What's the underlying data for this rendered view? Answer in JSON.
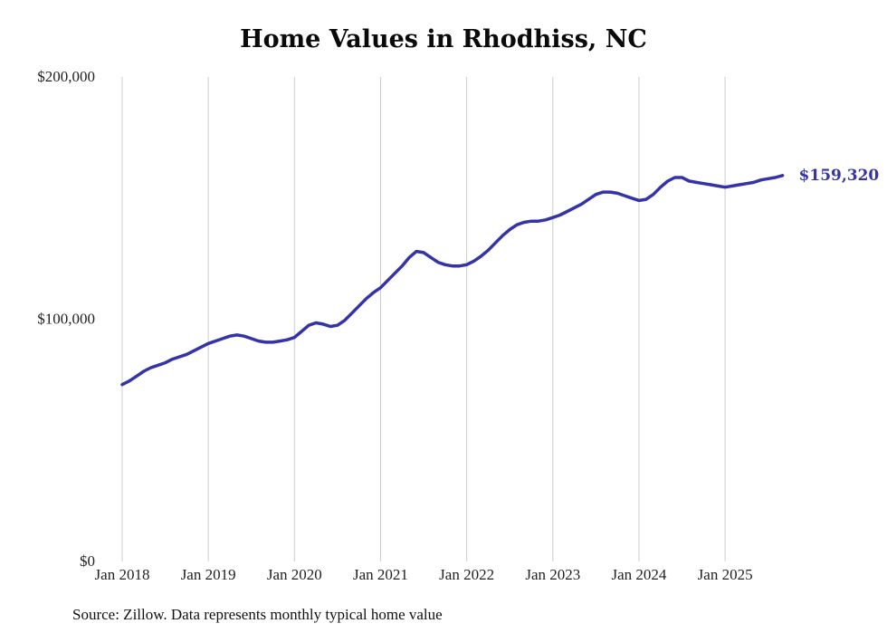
{
  "chart_data": {
    "type": "line",
    "title": "Home Values in Rhodhiss, NC",
    "source_note": "Source: Zillow. Data represents monthly typical home value",
    "end_label": "$159,320",
    "line_color": "#3533a8",
    "grid_color": "#cccccc",
    "frequency": "monthly",
    "start_month": "2018-01",
    "end_month": "2025-09",
    "ylim": [
      0,
      200000
    ],
    "y_ticks": [
      {
        "value": 0,
        "label": "$0"
      },
      {
        "value": 100000,
        "label": "$100,000"
      },
      {
        "value": 200000,
        "label": "$200,000"
      }
    ],
    "x_ticks": [
      "Jan 2018",
      "Jan 2019",
      "Jan 2020",
      "Jan 2021",
      "Jan 2022",
      "Jan 2023",
      "Jan 2024",
      "Jan 2025"
    ],
    "legend_position": "none",
    "grid": "vertical-only",
    "series": [
      {
        "name": "Typical home value",
        "values": [
          73000,
          74500,
          76500,
          78500,
          80000,
          81000,
          82000,
          83500,
          84500,
          85500,
          87000,
          88500,
          90000,
          91000,
          92000,
          93000,
          93500,
          93000,
          92000,
          91000,
          90500,
          90500,
          91000,
          91500,
          92500,
          95000,
          97500,
          98500,
          98000,
          97000,
          97500,
          99500,
          102500,
          105500,
          108500,
          111000,
          113000,
          116000,
          119000,
          122000,
          125500,
          128000,
          127500,
          125500,
          123500,
          122500,
          122000,
          122000,
          122500,
          124000,
          126000,
          128500,
          131500,
          134500,
          137000,
          139000,
          140000,
          140500,
          140500,
          141000,
          142000,
          143000,
          144500,
          146000,
          147500,
          149500,
          151500,
          152500,
          152500,
          152000,
          151000,
          150000,
          149000,
          149500,
          151500,
          154500,
          157000,
          158500,
          158500,
          157000,
          156500,
          156000,
          155500,
          155000,
          154500,
          155000,
          155500,
          156000,
          156500,
          157500,
          158000,
          158500,
          159320
        ]
      }
    ]
  }
}
